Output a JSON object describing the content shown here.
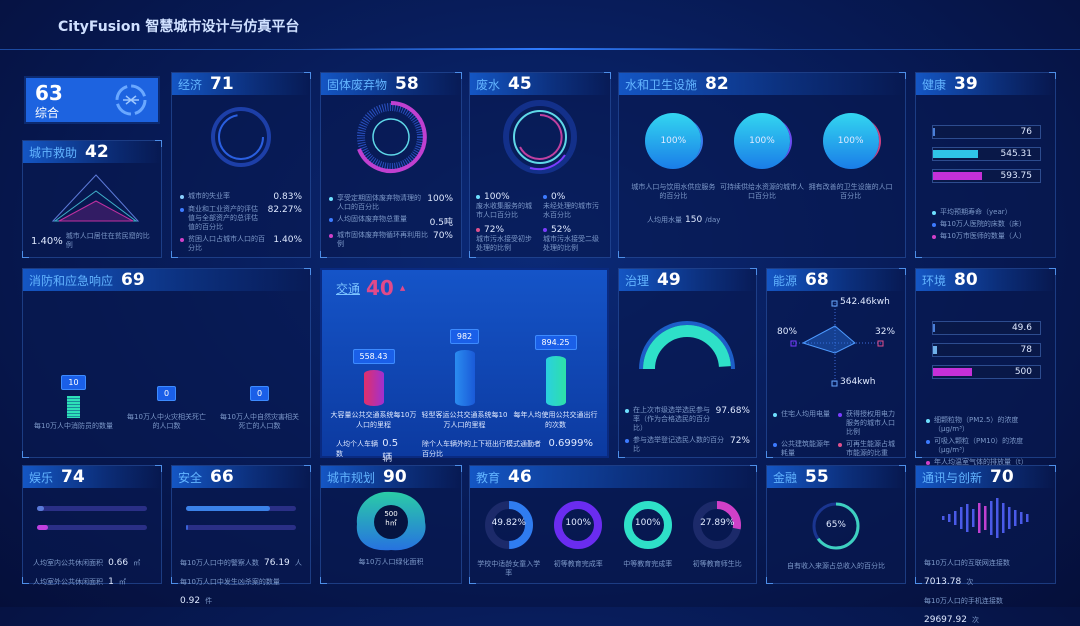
{
  "header": {
    "title": "CityFusion 智慧城市设计与仿真平台"
  },
  "overall": {
    "score": "63",
    "label": "综合",
    "icon": "network-hub-icon"
  },
  "rescue": {
    "name": "城市救助",
    "score": "42",
    "value": "1.40%",
    "label": "城市人口居住在贫民窟的比例"
  },
  "economy": {
    "name": "经济",
    "score": "71",
    "items": [
      {
        "label": "城市的失业率",
        "value": "0.83%",
        "color": "#8ad0ff"
      },
      {
        "label": "商业和工业资产的评估值与全部资产的总评估值的百分比",
        "value": "82.27%",
        "color": "#3d7bff"
      },
      {
        "label": "贫困人口占城市人口的百分比",
        "value": "1.40%",
        "color": "#d040c8"
      }
    ]
  },
  "waste": {
    "name": "固体废弃物",
    "score": "58",
    "items": [
      {
        "label": "享受定期固体废弃物清理的人口的百分比",
        "value": "100%",
        "color": "#6ee0ff"
      },
      {
        "label": "人均固体废弃物总重量",
        "value": "0.5吨",
        "color": "#3d7bff"
      },
      {
        "label": "城市固体废弃物循环再利用比例",
        "value": "70%",
        "color": "#d040c8"
      }
    ]
  },
  "wastewater": {
    "name": "废水",
    "score": "45",
    "items": [
      {
        "value": "100%",
        "label": "废水收集服务的城市人口百分比",
        "color": "#6ee0ff"
      },
      {
        "value": "0%",
        "label": "未经处理的城市污水百分比",
        "color": "#3d7bff"
      },
      {
        "value": "72%",
        "label": "城市污水接受初步处理的比例",
        "color": "#e0508c"
      },
      {
        "value": "52%",
        "label": "城市污水接受二级处理的比例",
        "color": "#7a3cff"
      }
    ]
  },
  "water": {
    "name": "水和卫生设施",
    "score": "82",
    "items": [
      {
        "value": "100%",
        "label": "城市人口与饮用水供应服务的百分比"
      },
      {
        "value": "100%",
        "label": "可持续供给水资源的城市人口百分比"
      },
      {
        "value": "100%",
        "label": "拥有改善的卫生设施的人口百分比"
      }
    ],
    "usage_label": "人均用水量",
    "usage_value": "150",
    "usage_unit": "/day"
  },
  "health": {
    "name": "健康",
    "score": "39",
    "bars": [
      {
        "value": "76",
        "fill": 0.02,
        "color": "#4a7fd8"
      },
      {
        "value": "545.31",
        "fill": 0.42,
        "color": "#2fc4e8"
      },
      {
        "value": "593.75",
        "fill": 0.46,
        "color": "#c530d8"
      }
    ],
    "legend": [
      {
        "label": "平均预期寿命（year）",
        "color": "#6ee0ff"
      },
      {
        "label": "每10万人医院的床数（床）",
        "color": "#3d7bff"
      },
      {
        "label": "每10万市医师的数量（人）",
        "color": "#d040c8"
      }
    ]
  },
  "fire": {
    "name": "消防和应急响应",
    "score": "69",
    "items": [
      {
        "value": "10",
        "label": "每10万人中消防员的数量"
      },
      {
        "value": "0",
        "label": "每10万人中火灾相关死亡的人口数"
      },
      {
        "value": "0",
        "label": "每10万人中自然灾害相关死亡的人口数"
      }
    ]
  },
  "traffic": {
    "name": "交通",
    "score": "40",
    "trend": "▲",
    "cols": [
      {
        "value": "558.43",
        "label": "大容量公共交通系统每10万人口的里程"
      },
      {
        "value": "982",
        "label": "轻型客运公共交通系统每10万人口的里程"
      },
      {
        "value": "894.25",
        "label": "每年人均使用公共交通出行的次数"
      }
    ],
    "car_label": "人均个人车辆数",
    "car_value": "0.5辆",
    "commute_label": "除个人车辆外的上下班出行模式通勤者百分比",
    "commute_value": "0.6999%"
  },
  "governance": {
    "name": "治理",
    "score": "49",
    "gauge": 0.9768,
    "items": [
      {
        "label": "在上次市级选举选民参与率（作为合格选民的百分比）",
        "value": "97.68%",
        "color": "#6ee0ff"
      },
      {
        "label": "参与选举登记选民人数的百分比",
        "value": "72%",
        "color": "#3d7bff"
      }
    ]
  },
  "energy": {
    "name": "能源",
    "score": "68",
    "top": "542.46kwh",
    "left": "80%",
    "right": "32%",
    "bottom": "364kwh",
    "legend": [
      {
        "label": "住宅人均用电量",
        "color": "#6ee0ff"
      },
      {
        "label": "获得授权用电力服务的城市人口比例",
        "color": "#7a3cff"
      },
      {
        "label": "公共建筑能源年耗量",
        "color": "#3d7bff"
      },
      {
        "label": "可再生能源占城市能源的比重",
        "color": "#e0508c"
      }
    ]
  },
  "environment": {
    "name": "环境",
    "score": "80",
    "bars": [
      {
        "value": "49.6",
        "fill": 0.01,
        "color": "#4a7fd8"
      },
      {
        "value": "78",
        "fill": 0.04,
        "color": "#6fb0e8"
      },
      {
        "value": "500",
        "fill": 0.36,
        "color": "#c530d8"
      }
    ],
    "legend": [
      {
        "label": "细颗粒物（PM2.5）的浓度（μg/m³）",
        "color": "#6ee0ff"
      },
      {
        "label": "可吸入颗粒（PM10）的浓度（μg/m³）",
        "color": "#3d7bff"
      },
      {
        "label": "年人均温室气体的排放量（t）",
        "color": "#d040c8"
      }
    ]
  },
  "entertainment": {
    "name": "娱乐",
    "score": "74",
    "bars": [
      {
        "fill": 0.06,
        "color": "#5a7ad8"
      },
      {
        "fill": 0.1,
        "color": "#c040e0"
      }
    ],
    "items": [
      {
        "label": "人均室内公共休闲面积",
        "value": "0.66",
        "unit": "㎡"
      },
      {
        "label": "人均室外公共休闲面积",
        "value": "1",
        "unit": "㎡"
      }
    ]
  },
  "safety": {
    "name": "安全",
    "score": "66",
    "bars": [
      {
        "fill": 0.76,
        "color": "#3b82e8"
      },
      {
        "fill": 0.01,
        "color": "#3b62d8"
      }
    ],
    "items": [
      {
        "label": "每10万人口中的警察人数",
        "value": "76.19",
        "unit": "人"
      },
      {
        "label": "每10万人口中发生凶杀案的数量",
        "value": "0.92",
        "unit": "件"
      }
    ]
  },
  "planning": {
    "name": "城市规划",
    "score": "90",
    "value": "500",
    "unit": "h㎡",
    "label": "每10万人口绿化面积"
  },
  "education": {
    "name": "教育",
    "score": "46",
    "rings": [
      {
        "value": "49.82%",
        "pct": 0.4982,
        "color": "#2f7cf0",
        "label": "学校中适龄女童入学率"
      },
      {
        "value": "100%",
        "pct": 1,
        "color": "#6a2cf0",
        "label": "初等教育完成率"
      },
      {
        "value": "100%",
        "pct": 1,
        "color": "#2ee0c8",
        "label": "中等教育完成率"
      },
      {
        "value": "27.89%",
        "pct": 0.2789,
        "color": "#d040c8",
        "label": "初等教育师生比"
      }
    ]
  },
  "finance": {
    "name": "金融",
    "score": "55",
    "value": "65%",
    "pct": 0.65,
    "label": "自有收入来源占总收入的百分比"
  },
  "telecom": {
    "name": "通讯与创新",
    "score": "70",
    "items": [
      {
        "label": "每10万人口的互联网连接数",
        "value": "7013.78",
        "unit": "次"
      },
      {
        "label": "每10万人口的手机连接数",
        "value": "29697.92",
        "unit": "次"
      }
    ]
  }
}
